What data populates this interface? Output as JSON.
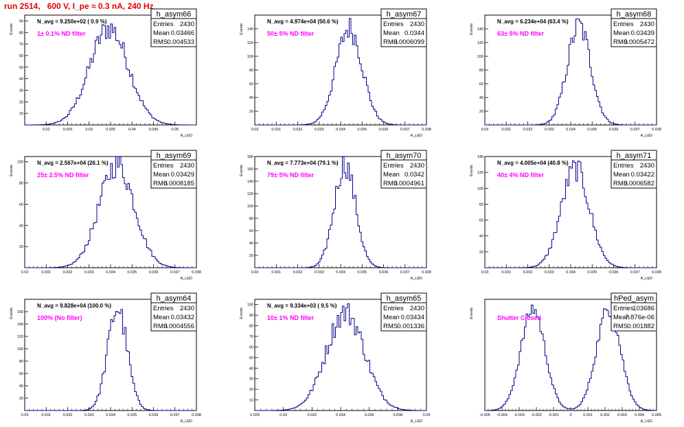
{
  "run_title": "run 2514,   600 V, I_pe ≈ 0.3 nA, 240 Hz",
  "colors": {
    "title": "#e00000",
    "hist_line": "#00008b",
    "filter_label": "#ff00ff",
    "axes": "#000000"
  },
  "chart_data": [
    {
      "type": "histogram",
      "name": "h_asym66",
      "navg": "N_avg = 9.250e+02 ( 0.9 %)",
      "filter": "1± 0.1% ND filter",
      "stats": [
        [
          "Entries",
          "2430"
        ],
        [
          "Mean",
          "0.03466"
        ],
        [
          "RMS",
          "0.004533"
        ]
      ],
      "ylabel": "Events",
      "xlabel": "A_LED",
      "xlim": [
        0.015,
        0.055
      ],
      "ylim": [
        0,
        95
      ],
      "xticks": [
        0.02,
        0.025,
        0.03,
        0.035,
        0.04,
        0.045,
        0.05
      ],
      "xticklabels": [
        "0.02",
        "0.025",
        "0.03",
        "0.035",
        "0.04",
        "0.045",
        "0.05"
      ],
      "yticks": [
        10,
        20,
        30,
        40,
        50,
        60,
        70,
        80,
        90
      ],
      "yticklabels": [
        "10",
        "20",
        "30",
        "40",
        "50",
        "60",
        "70",
        "80",
        "90"
      ],
      "mean": 0.03466,
      "rms": 0.004533,
      "peak": 86,
      "entries": 2430
    },
    {
      "type": "histogram",
      "name": "h_asym67",
      "navg": "N_avg = 4.974e+04 (50.6 %)",
      "filter": "50± 5% ND filter",
      "stats": [
        [
          "Entries",
          "2430"
        ],
        [
          "Mean",
          "0.0344"
        ],
        [
          "RMS",
          "0.0006099"
        ]
      ],
      "ylabel": "Events",
      "xlabel": "A_LED",
      "xlim": [
        0.03,
        0.038
      ],
      "ylim": [
        0,
        160
      ],
      "xticks": [
        0.03,
        0.031,
        0.032,
        0.033,
        0.034,
        0.035,
        0.036,
        0.037,
        0.038
      ],
      "xticklabels": [
        "0.03",
        "0.031",
        "0.032",
        "0.033",
        "0.034",
        "0.035",
        "0.036",
        "0.037",
        "0.038"
      ],
      "yticks": [
        20,
        40,
        60,
        80,
        100,
        120,
        140
      ],
      "yticklabels": [
        "20",
        "40",
        "60",
        "80",
        "100",
        "120",
        "140"
      ],
      "mean": 0.0344,
      "rms": 0.0006099,
      "peak": 145,
      "entries": 2430
    },
    {
      "type": "histogram",
      "name": "h_asym68",
      "navg": "N_avg = 6.234e+04 (63.4 %)",
      "filter": "63± 5% ND filter",
      "stats": [
        [
          "Entries",
          "2430"
        ],
        [
          "Mean",
          "0.03439"
        ],
        [
          "RMS",
          "0.0005472"
        ]
      ],
      "ylabel": "Events",
      "xlabel": "A_LED",
      "xlim": [
        0.03,
        0.038
      ],
      "ylim": [
        0,
        160
      ],
      "xticks": [
        0.03,
        0.031,
        0.032,
        0.033,
        0.034,
        0.035,
        0.036,
        0.037,
        0.038
      ],
      "xticklabels": [
        "0.03",
        "0.031",
        "0.032",
        "0.033",
        "0.034",
        "0.035",
        "0.036",
        "0.037",
        "0.038"
      ],
      "yticks": [
        20,
        40,
        60,
        80,
        100,
        120,
        140
      ],
      "yticklabels": [
        "20",
        "40",
        "60",
        "80",
        "100",
        "120",
        "140"
      ],
      "mean": 0.03439,
      "rms": 0.0005472,
      "peak": 148,
      "entries": 2430
    },
    {
      "type": "histogram",
      "name": "h_asym69",
      "navg": "N_avg = 2.567e+04 (26.1 %)",
      "filter": "25± 2.5% ND filter",
      "stats": [
        [
          "Entries",
          "2430"
        ],
        [
          "Mean",
          "0.03429"
        ],
        [
          "RMS",
          "0.0008185"
        ]
      ],
      "ylabel": "Events",
      "xlabel": "A_LED",
      "xlim": [
        0.03,
        0.038
      ],
      "ylim": [
        0,
        105
      ],
      "xticks": [
        0.03,
        0.031,
        0.032,
        0.033,
        0.034,
        0.035,
        0.036,
        0.037,
        0.038
      ],
      "xticklabels": [
        "0.03",
        "0.031",
        "0.032",
        "0.033",
        "0.034",
        "0.035",
        "0.036",
        "0.037",
        "0.038"
      ],
      "yticks": [
        20,
        40,
        60,
        80,
        100
      ],
      "yticklabels": [
        "20",
        "40",
        "60",
        "80",
        "100"
      ],
      "mean": 0.03429,
      "rms": 0.0008185,
      "peak": 100,
      "entries": 2430
    },
    {
      "type": "histogram",
      "name": "h_asym70",
      "navg": "N_avg = 7.773e+04 (79.1 %)",
      "filter": "79± 5% ND filter",
      "stats": [
        [
          "Entries",
          "2430"
        ],
        [
          "Mean",
          "0.0342"
        ],
        [
          "RMS",
          "0.0004961"
        ]
      ],
      "ylabel": "Events",
      "xlabel": "A_LED",
      "xlim": [
        0.03,
        0.038
      ],
      "ylim": [
        0,
        180
      ],
      "xticks": [
        0.03,
        0.031,
        0.032,
        0.033,
        0.034,
        0.035,
        0.036,
        0.037,
        0.038
      ],
      "xticklabels": [
        "0.03",
        "0.031",
        "0.032",
        "0.033",
        "0.034",
        "0.035",
        "0.036",
        "0.037",
        "0.038"
      ],
      "yticks": [
        20,
        40,
        60,
        80,
        100,
        120,
        140,
        160,
        180
      ],
      "yticklabels": [
        "20",
        "40",
        "60",
        "80",
        "100",
        "120",
        "140",
        "160",
        "180"
      ],
      "mean": 0.0342,
      "rms": 0.0004961,
      "peak": 172,
      "entries": 2430
    },
    {
      "type": "histogram",
      "name": "h_asym71",
      "navg": "N_avg = 4.005e+04 (40.8 %)",
      "filter": "40± 4% ND filter",
      "stats": [
        [
          "Entries",
          "2430"
        ],
        [
          "Mean",
          "0.03422"
        ],
        [
          "RMS",
          "0.0006582"
        ]
      ],
      "ylabel": "Events",
      "xlabel": "A_LED",
      "xlim": [
        0.03,
        0.038
      ],
      "ylim": [
        0,
        140
      ],
      "xticks": [
        0.03,
        0.031,
        0.032,
        0.033,
        0.034,
        0.035,
        0.036,
        0.037,
        0.038
      ],
      "xticklabels": [
        "0.03",
        "0.031",
        "0.032",
        "0.033",
        "0.034",
        "0.035",
        "0.036",
        "0.037",
        "0.038"
      ],
      "yticks": [
        20,
        40,
        60,
        80,
        100,
        120,
        140
      ],
      "yticklabels": [
        "20",
        "40",
        "60",
        "80",
        "100",
        "120",
        "140"
      ],
      "mean": 0.03422,
      "rms": 0.0006582,
      "peak": 128,
      "entries": 2430
    },
    {
      "type": "histogram",
      "name": "h_asym64",
      "navg": "N_avg = 9.828e+04 (100.0 %)",
      "filter": "100% (No filter)",
      "stats": [
        [
          "Entries",
          "2430"
        ],
        [
          "Mean",
          "0.03432"
        ],
        [
          "RMS",
          "0.0004556"
        ]
      ],
      "ylabel": "Events",
      "xlabel": "A_LED",
      "xlim": [
        0.03,
        0.038
      ],
      "ylim": [
        0,
        180
      ],
      "xticks": [
        0.03,
        0.031,
        0.032,
        0.033,
        0.034,
        0.035,
        0.036,
        0.037,
        0.038
      ],
      "xticklabels": [
        "0.03",
        "0.031",
        "0.032",
        "0.033",
        "0.034",
        "0.035",
        "0.036",
        "0.037",
        "0.038"
      ],
      "yticks": [
        20,
        40,
        60,
        80,
        100,
        120,
        140,
        160
      ],
      "yticklabels": [
        "20",
        "40",
        "60",
        "80",
        "100",
        "120",
        "140",
        "160"
      ],
      "mean": 0.03432,
      "rms": 0.0004556,
      "peak": 170,
      "entries": 2430
    },
    {
      "type": "histogram",
      "name": "h_asym65",
      "navg": "N_avg = 9.334e+03 ( 9.5 %)",
      "filter": "10± 1% ND filter",
      "stats": [
        [
          "Entries",
          "2430"
        ],
        [
          "Mean",
          "0.03434"
        ],
        [
          "RMS",
          "0.001336"
        ]
      ],
      "ylabel": "Events",
      "xlabel": "A_LED",
      "xlim": [
        0.028,
        0.04
      ],
      "ylim": [
        0,
        105
      ],
      "xticks": [
        0.028,
        0.03,
        0.032,
        0.034,
        0.036,
        0.038,
        0.04
      ],
      "xticklabels": [
        "0.028",
        "0.03",
        "0.032",
        "0.034",
        "0.036",
        "0.038",
        "0.04"
      ],
      "yticks": [
        10,
        20,
        30,
        40,
        50,
        60,
        70,
        80,
        90,
        100
      ],
      "yticklabels": [
        "10",
        "20",
        "30",
        "40",
        "50",
        "60",
        "70",
        "80",
        "90",
        "100"
      ],
      "mean": 0.03434,
      "rms": 0.001336,
      "peak": 95,
      "entries": 2430
    },
    {
      "type": "histogram",
      "name": "hPed_asym",
      "navg": "",
      "filter": "Shutter Closed",
      "stats": [
        [
          "Entries",
          "103686"
        ],
        [
          "Mean",
          "7.876e-06"
        ],
        [
          "RMS",
          "0.001882"
        ]
      ],
      "ylabel": "Events",
      "xlabel": "A_LED",
      "xlim": [
        -0.005,
        0.005
      ],
      "ylim": [
        0,
        2500
      ],
      "xticks": [
        -0.005,
        -0.004,
        -0.003,
        -0.002,
        -0.001,
        0,
        0.001,
        0.002,
        0.003,
        0.004,
        0.005
      ],
      "xticklabels": [
        "-0.005",
        "-0.004",
        "-0.003",
        "-0.002",
        "-0.001",
        "0",
        "0.001",
        "0.002",
        "0.003",
        "0.004",
        "0.005"
      ],
      "yticks": [],
      "yticklabels": [],
      "bimodal": true,
      "centers": [
        -0.0022,
        0.0022
      ],
      "sigma": 0.0007,
      "peak": 2350,
      "valley": 800,
      "entries": 103686
    }
  ]
}
